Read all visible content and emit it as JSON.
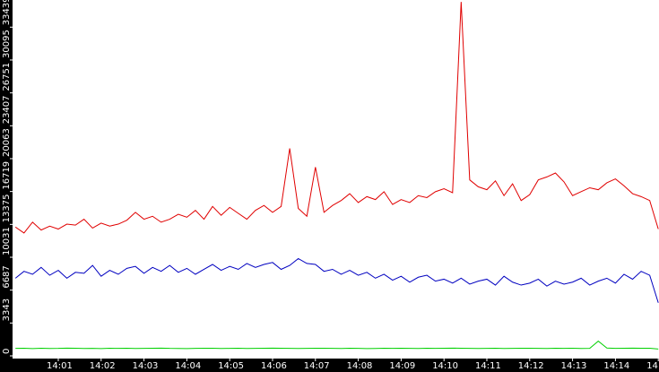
{
  "chart_data": {
    "type": "line",
    "categories": [
      null,
      null,
      null,
      null,
      null,
      "14:01",
      null,
      null,
      null,
      null,
      "14:02",
      null,
      null,
      null,
      null,
      "14:03",
      null,
      null,
      null,
      null,
      "14:04",
      null,
      null,
      null,
      null,
      "14:05",
      null,
      null,
      null,
      null,
      "14:06",
      null,
      null,
      null,
      null,
      "14:07",
      null,
      null,
      null,
      null,
      "14:08",
      null,
      null,
      null,
      null,
      "14:09",
      null,
      null,
      null,
      null,
      "14:10",
      null,
      null,
      null,
      null,
      "14:11",
      null,
      null,
      null,
      null,
      "14:12",
      null,
      null,
      null,
      null,
      "14:13",
      null,
      null,
      null,
      null,
      "14:14",
      null,
      null,
      null,
      null,
      "14"
    ],
    "series": [
      {
        "color": "#e00000",
        "values": [
          13100,
          12500,
          13600,
          12800,
          13200,
          12900,
          13400,
          13300,
          13900,
          13000,
          13500,
          13200,
          13400,
          13800,
          14600,
          13900,
          14200,
          13600,
          13900,
          14400,
          14100,
          14800,
          13900,
          15200,
          14300,
          15100,
          14500,
          13900,
          14800,
          15300,
          14600,
          15200,
          21100,
          15000,
          14200,
          19200,
          14600,
          15300,
          15800,
          16500,
          15600,
          16200,
          15900,
          16700,
          15400,
          15900,
          15600,
          16300,
          16100,
          16700,
          17000,
          16600,
          36000,
          17900,
          17200,
          16900,
          17800,
          16300,
          17500,
          15800,
          16400,
          17900,
          18200,
          18600,
          17700,
          16300,
          16700,
          17100,
          16900,
          17600,
          18000,
          17300,
          16500,
          16200,
          15800,
          12900
        ]
      },
      {
        "color": "#0000c0",
        "values": [
          7900,
          8600,
          8300,
          9000,
          8200,
          8700,
          7900,
          8500,
          8400,
          9200,
          8100,
          8700,
          8300,
          8900,
          9100,
          8400,
          9000,
          8600,
          9200,
          8500,
          8900,
          8300,
          8800,
          9300,
          8700,
          9100,
          8800,
          9400,
          9000,
          9300,
          9500,
          8800,
          9200,
          9900,
          9400,
          9300,
          8600,
          8800,
          8300,
          8700,
          8200,
          8500,
          7900,
          8300,
          7700,
          8100,
          7500,
          8000,
          8200,
          7600,
          7800,
          7400,
          7900,
          7300,
          7600,
          7800,
          7200,
          8100,
          7500,
          7200,
          7400,
          7800,
          7100,
          7600,
          7300,
          7500,
          7900,
          7200,
          7600,
          7900,
          7400,
          8300,
          7800,
          8600,
          8200,
          5400
        ]
      },
      {
        "color": "#00d000",
        "values": [
          760,
          780,
          740,
          770,
          750,
          760,
          790,
          770,
          750,
          760,
          740,
          770,
          760,
          780,
          750,
          760,
          770,
          790,
          760,
          750,
          740,
          760,
          780,
          770,
          750,
          760,
          770,
          750,
          760,
          780,
          790,
          770,
          760,
          750,
          760,
          780,
          770,
          760,
          750,
          770,
          760,
          740,
          750,
          770,
          760,
          780,
          760,
          750,
          770,
          760,
          780,
          790,
          770,
          760,
          750,
          760,
          770,
          750,
          760,
          780,
          770,
          760,
          750,
          770,
          760,
          780,
          750,
          760,
          1500,
          800,
          760,
          770,
          790,
          780,
          770,
          700
        ]
      }
    ],
    "ylim": [
      0,
      36200
    ],
    "yticks": [
      0,
      3343,
      6687,
      10031,
      13375,
      16719,
      20063,
      23407,
      26751,
      30095,
      33439
    ],
    "grid": false
  }
}
